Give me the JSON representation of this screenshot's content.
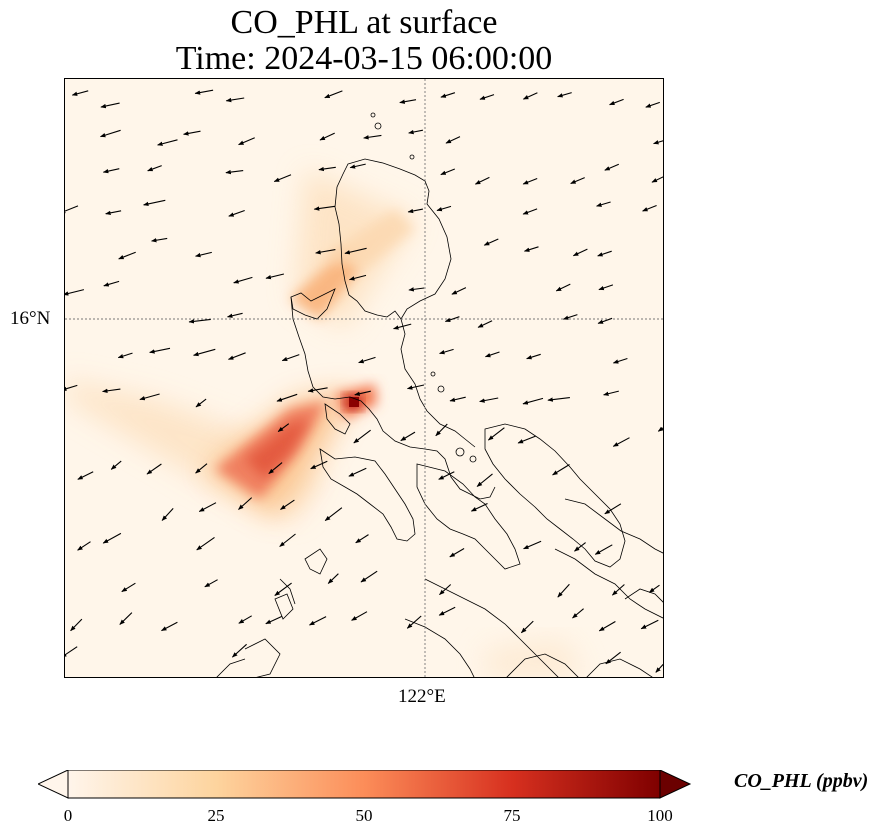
{
  "title": {
    "line1": "CO_PHL at surface",
    "line2": "Time: 2024-03-15 06:00:00"
  },
  "axes": {
    "lat_label": "16°N",
    "lon_label": "122°E"
  },
  "colorbar": {
    "label": "CO_PHL (ppbv)",
    "ticks": [
      "0",
      "25",
      "50",
      "75",
      "100"
    ],
    "range": [
      0,
      100
    ],
    "colormap": [
      "#fff5eb",
      "#fdd49e",
      "#fc8d59",
      "#d7301f",
      "#7f0000"
    ]
  },
  "colors": {
    "background_field": "#fff6ea",
    "coastline": "#000000",
    "wind_arrow": "#000000"
  }
}
